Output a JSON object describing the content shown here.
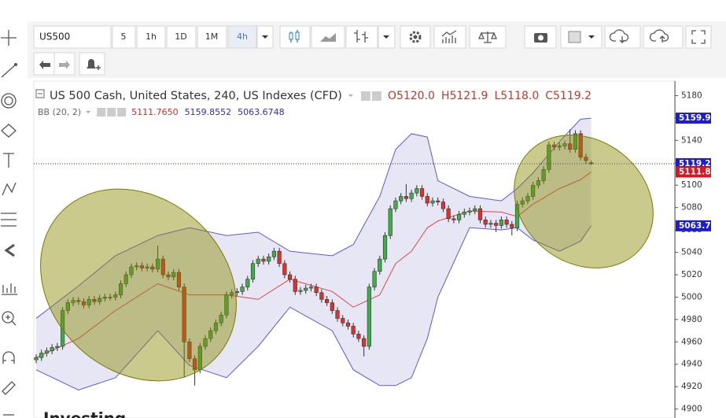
{
  "toolbar": {
    "symbol": "US500",
    "intervals": [
      "5",
      "1h",
      "1D",
      "1M",
      "4h"
    ]
  },
  "logo": "Investing",
  "chart_data": {
    "type": "candlestick",
    "title": "US 500 Cash, United States, 240, US Indexes (CFD)",
    "ohlc": [
      "O5120.0",
      "H5121.9",
      "L5118.0",
      "C5119.2"
    ],
    "ohlc_color": "#c0392b",
    "indicator": {
      "name": "BB (20, 2)",
      "values": [
        "5111.7650",
        "5159.8552",
        "5063.6748"
      ],
      "colors": [
        "#d42b2b",
        "#2b2bd4",
        "#2b2bd4"
      ]
    },
    "ylim": [
      4892,
      5193
    ],
    "yticks": [
      4900,
      4920,
      4940,
      4960,
      4980,
      5000,
      5020,
      5040,
      5060,
      5080,
      5100,
      5120,
      5140,
      5160,
      5180
    ],
    "up_color": "#3fae49",
    "down_color": "#e0302c",
    "open": [
      4944,
      4946,
      4950,
      4952,
      4955,
      4956,
      4988,
      4995,
      4997,
      4996,
      4993,
      4998,
      4996,
      4999,
      5000,
      5000,
      5002,
      5012,
      5020,
      5027,
      5028,
      5026,
      5027,
      5025,
      5034,
      5020,
      5018,
      5022,
      5009,
      4960,
      4945,
      4935,
      4956,
      4963,
      4970,
      4977,
      4984,
      5002,
      5004,
      5005,
      5009,
      5016,
      5030,
      5034,
      5032,
      5036,
      5041,
      5030,
      5020,
      5016,
      5005,
      5006,
      5008,
      5009,
      5004,
      4998,
      4995,
      4988,
      4981,
      4977,
      4974,
      4967,
      4963,
      4956,
      5009,
      5023,
      5034,
      5055,
      5079,
      5086,
      5090,
      5088,
      5093,
      5097,
      5090,
      5084,
      5086,
      5085,
      5079,
      5070,
      5069,
      5074,
      5076,
      5077,
      5079,
      5069,
      5065,
      5066,
      5064,
      5069,
      5065,
      5062,
      5083,
      5086,
      5090,
      5100,
      5104,
      5114,
      5136,
      5134,
      5135,
      5137,
      5132,
      5146,
      5125,
      5120
    ],
    "high": [
      4949,
      4953,
      4955,
      4958,
      4959,
      4991,
      4998,
      5000,
      5000,
      4999,
      5001,
      5001,
      5002,
      5003,
      5003,
      5005,
      5015,
      5023,
      5030,
      5031,
      5031,
      5030,
      5030,
      5046,
      5037,
      5023,
      5025,
      5025,
      5012,
      4963,
      4948,
      4959,
      4966,
      4973,
      4980,
      4987,
      5005,
      5007,
      5008,
      5012,
      5019,
      5033,
      5037,
      5037,
      5039,
      5044,
      5044,
      5033,
      5023,
      5019,
      5009,
      5011,
      5012,
      5012,
      5007,
      5001,
      4998,
      4991,
      4984,
      4980,
      4977,
      4970,
      4966,
      5012,
      5026,
      5037,
      5058,
      5082,
      5089,
      5093,
      5101,
      5096,
      5100,
      5100,
      5093,
      5089,
      5089,
      5088,
      5082,
      5073,
      5077,
      5079,
      5080,
      5082,
      5082,
      5072,
      5069,
      5069,
      5072,
      5072,
      5068,
      5086,
      5089,
      5093,
      5103,
      5107,
      5117,
      5139,
      5139,
      5138,
      5140,
      5150,
      5149,
      5149,
      5128,
      5121.9
    ],
    "low": [
      4941,
      4943,
      4947,
      4949,
      4952,
      4953,
      4985,
      4992,
      4993,
      4990,
      4990,
      4993,
      4993,
      4996,
      4997,
      4997,
      4999,
      5009,
      5017,
      5024,
      5023,
      5023,
      5022,
      5022,
      5017,
      5015,
      5015,
      5006,
      4928,
      4942,
      4921,
      4932,
      4953,
      4960,
      4967,
      4974,
      4981,
      4999,
      5001,
      5002,
      5006,
      5013,
      5027,
      5029,
      5029,
      5033,
      5027,
      5017,
      5013,
      5002,
      5002,
      5003,
      5005,
      5001,
      4995,
      4992,
      4985,
      4978,
      4974,
      4971,
      4964,
      4960,
      4947,
      4953,
      5006,
      5020,
      5031,
      5052,
      5076,
      5083,
      5085,
      5085,
      5090,
      5087,
      5081,
      5081,
      5082,
      5076,
      5067,
      5066,
      5066,
      5071,
      5073,
      5074,
      5066,
      5062,
      5062,
      5058,
      5061,
      5062,
      5055,
      5059,
      5080,
      5083,
      5087,
      5097,
      5101,
      5111,
      5131,
      5131,
      5132,
      5129,
      5129,
      5122,
      5119,
      5118.0
    ],
    "close": [
      4946,
      4950,
      4952,
      4955,
      4956,
      4988,
      4995,
      4997,
      4996,
      4993,
      4998,
      4996,
      4999,
      5000,
      5000,
      5002,
      5012,
      5020,
      5027,
      5028,
      5026,
      5027,
      5025,
      5034,
      5020,
      5018,
      5022,
      5009,
      4960,
      4945,
      4935,
      4956,
      4963,
      4970,
      4977,
      4984,
      5002,
      5004,
      5005,
      5009,
      5016,
      5030,
      5034,
      5032,
      5036,
      5041,
      5030,
      5020,
      5016,
      5005,
      5006,
      5008,
      5009,
      5004,
      4998,
      4995,
      4988,
      4981,
      4977,
      4974,
      4967,
      4963,
      4956,
      5009,
      5023,
      5034,
      5055,
      5079,
      5086,
      5090,
      5088,
      5093,
      5097,
      5090,
      5084,
      5086,
      5085,
      5079,
      5070,
      5069,
      5074,
      5076,
      5077,
      5079,
      5069,
      5065,
      5066,
      5064,
      5069,
      5065,
      5062,
      5083,
      5086,
      5090,
      5100,
      5104,
      5114,
      5136,
      5134,
      5135,
      5137,
      5132,
      5146,
      5125,
      5122,
      5119.2
    ],
    "band": {
      "x": [
        0,
        8,
        15,
        23,
        29,
        36,
        42,
        48,
        56,
        60,
        65,
        68,
        71,
        74,
        76,
        82,
        88,
        91,
        94,
        99,
        103,
        105
      ],
      "upper": [
        4981,
        5010,
        5037,
        5055,
        5062,
        5055,
        5058,
        5041,
        5037,
        5047,
        5090,
        5132,
        5146,
        5143,
        5104,
        5090,
        5086,
        5097,
        5111,
        5139,
        5159,
        5159.9
      ],
      "middle": [
        4946,
        4963,
        4988,
        5012,
        5002,
        5002,
        4998,
        5016,
        5005,
        4991,
        5002,
        5030,
        5041,
        5062,
        5068,
        5077,
        5076,
        5072,
        5083,
        5097,
        5105,
        5111.8
      ],
      "lower": [
        4935,
        4917,
        4928,
        4970,
        4939,
        4928,
        4956,
        4991,
        4970,
        4935,
        4921,
        4921,
        4928,
        4963,
        5000,
        5062,
        5060,
        5062,
        5051,
        5041,
        5050,
        5063.7
      ],
      "line_color": "#5a5ae0",
      "middle_color": "#e04848",
      "fill": "#e6e6f5"
    },
    "price_tags": [
      {
        "value": 5159.9,
        "color": "#1c1cd6"
      },
      {
        "value": 5119.2,
        "color": "#1c1cd6"
      },
      {
        "value": 5111.8,
        "color": "#e0141e"
      },
      {
        "value": 5063.7,
        "color": "#1c1cd6"
      }
    ]
  }
}
